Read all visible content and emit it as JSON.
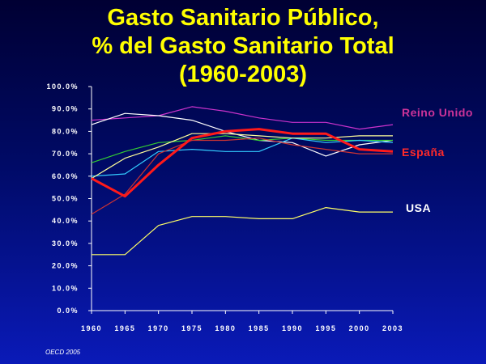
{
  "slide": {
    "title_lines": [
      "Gasto Sanitario Público,",
      "% del Gasto Sanitario Total",
      "(1960-2003)"
    ],
    "source": "OECD 2005"
  },
  "colors": {
    "background_top": "#000033",
    "background_bottom": "#0a1ab8",
    "title": "#ffff00",
    "axis": "#ffffff"
  },
  "chart_data": {
    "type": "line",
    "title": "Gasto Sanitario Público, % del Gasto Sanitario Total (1960-2003)",
    "xlabel": "",
    "ylabel": "",
    "ylim": [
      0,
      100
    ],
    "y_ticks": [
      "100.0%",
      "90.0%",
      "80.0%",
      "70.0%",
      "60.0%",
      "50.0%",
      "40.0%",
      "30.0%",
      "20.0%",
      "10.0%",
      "0.0%"
    ],
    "x": [
      "1960",
      "1965",
      "1970",
      "1975",
      "1980",
      "1985",
      "1990",
      "1995",
      "2000",
      "2003"
    ],
    "grid": false,
    "series": [
      {
        "name": "Reino Unido",
        "labeled": true,
        "color": "#cc33cc",
        "width": 1.2,
        "values": [
          85,
          86,
          87,
          91,
          89,
          86,
          84,
          84,
          81,
          83
        ]
      },
      {
        "name": "España",
        "labeled": true,
        "color": "#ff1a1a",
        "width": 3,
        "values": [
          59,
          51,
          65,
          77,
          80,
          81,
          79,
          79,
          72,
          71
        ]
      },
      {
        "name": "USA",
        "labeled": true,
        "color": "#ffff66",
        "width": 1.2,
        "values": [
          25,
          25,
          38,
          42,
          42,
          41,
          41,
          46,
          44,
          44
        ]
      },
      {
        "name": "",
        "labeled": false,
        "color": "#ffffff",
        "width": 1.2,
        "values": [
          83,
          88,
          87,
          85,
          80,
          76,
          75,
          69,
          74,
          76
        ]
      },
      {
        "name": "",
        "labeled": false,
        "color": "#33cc33",
        "width": 1.2,
        "values": [
          66,
          71,
          75,
          76,
          78,
          76,
          77,
          76,
          76,
          76
        ]
      },
      {
        "name": "",
        "labeled": false,
        "color": "#33ccff",
        "width": 1.2,
        "values": [
          60,
          61,
          71,
          72,
          71,
          71,
          77,
          75,
          76,
          75
        ]
      },
      {
        "name": "",
        "labeled": false,
        "color": "#cc3333",
        "width": 1.2,
        "values": [
          43,
          52,
          70,
          76,
          76,
          77,
          74,
          72,
          70,
          70
        ]
      },
      {
        "name": "",
        "labeled": false,
        "color": "#ffff99",
        "width": 1.2,
        "values": [
          59,
          68,
          73,
          79,
          79,
          78,
          77,
          77,
          78,
          78
        ]
      }
    ],
    "series_labels": [
      {
        "text": "Reino Unido",
        "color": "#cc3399"
      },
      {
        "text": "España",
        "color": "#ff2a2a"
      },
      {
        "text": "USA",
        "color": "#ffffff"
      }
    ]
  }
}
